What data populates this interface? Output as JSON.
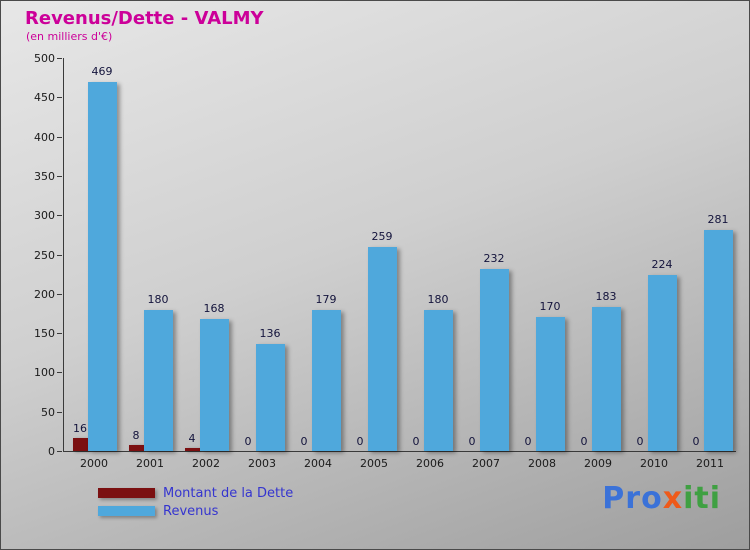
{
  "header": {
    "title": "Revenus/Dette - VALMY",
    "subtitle": "(en milliers d'€)"
  },
  "chart_data": {
    "type": "bar",
    "title": "Revenus/Dette - VALMY",
    "subtitle": "(en milliers d'€)",
    "categories": [
      "2000",
      "2001",
      "2002",
      "2003",
      "2004",
      "2005",
      "2006",
      "2007",
      "2008",
      "2009",
      "2010",
      "2011"
    ],
    "series": [
      {
        "name": "Montant de la Dette",
        "color": "#7b1011",
        "values": [
          16,
          8,
          4,
          0,
          0,
          0,
          0,
          0,
          0,
          0,
          0,
          0
        ]
      },
      {
        "name": "Revenus",
        "color": "#4fa8dc",
        "values": [
          469,
          180,
          168,
          136,
          179,
          259,
          180,
          232,
          170,
          183,
          224,
          281
        ]
      }
    ],
    "ylim": [
      0,
      500
    ],
    "yticks": [
      0,
      50,
      100,
      150,
      200,
      250,
      300,
      350,
      400,
      450,
      500
    ],
    "grid": false,
    "legend_position": "bottom-left",
    "xlabel": "",
    "ylabel": ""
  },
  "legend": {
    "items": [
      {
        "label": "Montant de la Dette",
        "color": "#7b1011"
      },
      {
        "label": "Revenus",
        "color": "#4fa8dc"
      }
    ]
  },
  "logo": {
    "letters": [
      {
        "char": "P",
        "color": "#3b72d8"
      },
      {
        "char": "r",
        "color": "#3b72d8"
      },
      {
        "char": "o",
        "color": "#3b72d8"
      },
      {
        "char": "x",
        "color": "#ee5a1a"
      },
      {
        "char": "i",
        "color": "#3fa042"
      },
      {
        "char": "t",
        "color": "#3fa042"
      },
      {
        "char": "i",
        "color": "#3fa042"
      }
    ]
  }
}
